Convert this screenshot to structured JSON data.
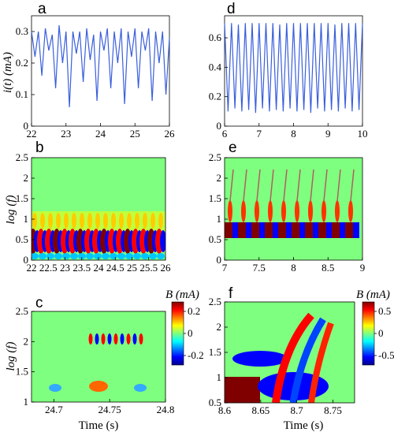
{
  "chart_data": [
    {
      "panel": "a",
      "type": "line",
      "color": "#3a5fdc",
      "xlim": [
        22,
        26
      ],
      "ylim": [
        0,
        0.35
      ],
      "xticks": [
        "22",
        "23",
        "24",
        "25",
        "26"
      ],
      "yticks": [
        "0",
        "0.1",
        "0.2",
        "0.3"
      ],
      "ylabel": "i(t) (mA)",
      "series": [
        {
          "x": [
            22.0,
            22.1,
            22.2,
            22.3,
            22.4,
            22.5,
            22.6,
            22.7,
            22.8,
            22.9,
            23.0,
            23.1,
            23.2,
            23.3,
            23.4,
            23.5,
            23.6,
            23.7,
            23.8,
            23.9,
            24.0,
            24.1,
            24.2,
            24.3,
            24.4,
            24.5,
            24.6,
            24.7,
            24.8,
            24.9,
            25.0,
            25.1,
            25.2,
            25.3,
            25.4,
            25.5,
            25.6,
            25.7,
            25.8,
            25.9,
            26.0
          ],
          "y": [
            0.3,
            0.22,
            0.3,
            0.16,
            0.31,
            0.24,
            0.29,
            0.12,
            0.32,
            0.2,
            0.3,
            0.06,
            0.3,
            0.23,
            0.3,
            0.14,
            0.31,
            0.21,
            0.29,
            0.08,
            0.3,
            0.24,
            0.31,
            0.12,
            0.3,
            0.2,
            0.31,
            0.07,
            0.3,
            0.22,
            0.31,
            0.12,
            0.3,
            0.24,
            0.31,
            0.08,
            0.3,
            0.2,
            0.3,
            0.1,
            0.28
          ]
        }
      ]
    },
    {
      "panel": "d",
      "type": "line",
      "color": "#3a5fdc",
      "xlim": [
        6,
        10
      ],
      "ylim": [
        0,
        0.75
      ],
      "xticks": [
        "6",
        "7",
        "8",
        "9",
        "10"
      ],
      "yticks": [
        "0",
        "0.2",
        "0.4",
        "0.6"
      ],
      "ylabel": "",
      "series": [
        {
          "x": [
            6.0,
            6.1,
            6.2,
            6.3,
            6.4,
            6.5,
            6.6,
            6.7,
            6.8,
            6.9,
            7.0,
            7.1,
            7.2,
            7.3,
            7.4,
            7.5,
            7.6,
            7.7,
            7.8,
            7.9,
            8.0,
            8.1,
            8.2,
            8.3,
            8.4,
            8.5,
            8.6,
            8.7,
            8.8,
            8.9,
            9.0,
            9.1,
            9.2,
            9.3,
            9.4,
            9.5,
            9.6,
            9.7,
            9.8,
            9.9,
            10.0
          ],
          "y": [
            0.7,
            0.1,
            0.7,
            0.12,
            0.69,
            0.1,
            0.7,
            0.11,
            0.7,
            0.09,
            0.7,
            0.12,
            0.7,
            0.1,
            0.7,
            0.11,
            0.69,
            0.1,
            0.7,
            0.12,
            0.7,
            0.1,
            0.7,
            0.11,
            0.7,
            0.09,
            0.7,
            0.12,
            0.7,
            0.1,
            0.7,
            0.11,
            0.69,
            0.1,
            0.7,
            0.12,
            0.7,
            0.1,
            0.7,
            0.11,
            0.7
          ]
        }
      ]
    },
    {
      "panel": "b",
      "type": "heatmap",
      "xlim": [
        22,
        26
      ],
      "ylim": [
        0,
        2.5
      ],
      "xticks": [
        "22",
        "22.5",
        "23",
        "23.5",
        "24",
        "24.5",
        "25",
        "25.5",
        "26"
      ],
      "yticks": [
        "0",
        "0.5",
        "1",
        "1.5",
        "2",
        "2.5"
      ],
      "ylabel": "log (f)"
    },
    {
      "panel": "e",
      "type": "heatmap",
      "xlim": [
        7,
        9
      ],
      "ylim": [
        0,
        2.5
      ],
      "xticks": [
        "7",
        "7.5",
        "8",
        "8.5",
        "9"
      ],
      "yticks": [
        "0",
        "0.5",
        "1",
        "1.5",
        "2",
        "2.5"
      ],
      "ylabel": ""
    },
    {
      "panel": "c",
      "type": "heatmap",
      "xlim": [
        24.68,
        24.8
      ],
      "ylim": [
        1,
        2.5
      ],
      "xticks": [
        "24.7",
        "24.75",
        "24.8"
      ],
      "yticks": [
        "1",
        "1.5",
        "2",
        "2.5"
      ],
      "ylabel": "log (f)",
      "xlabel": "Time (s)",
      "colorbar": {
        "label": "B (mA)",
        "ticks": [
          "0.2",
          "0",
          "-0.2"
        ]
      }
    },
    {
      "panel": "f",
      "type": "heatmap",
      "xlim": [
        8.6,
        8.78
      ],
      "ylim": [
        0.5,
        2.5
      ],
      "xticks": [
        "8.6",
        "8.65",
        "8.7",
        "8.75"
      ],
      "yticks": [
        "0.5",
        "1",
        "1.5",
        "2",
        "2.5"
      ],
      "ylabel": "",
      "xlabel": "Time (s)",
      "colorbar": {
        "label": "B (mA)",
        "ticks": [
          "0.5",
          "0",
          "-0.5"
        ]
      }
    }
  ]
}
